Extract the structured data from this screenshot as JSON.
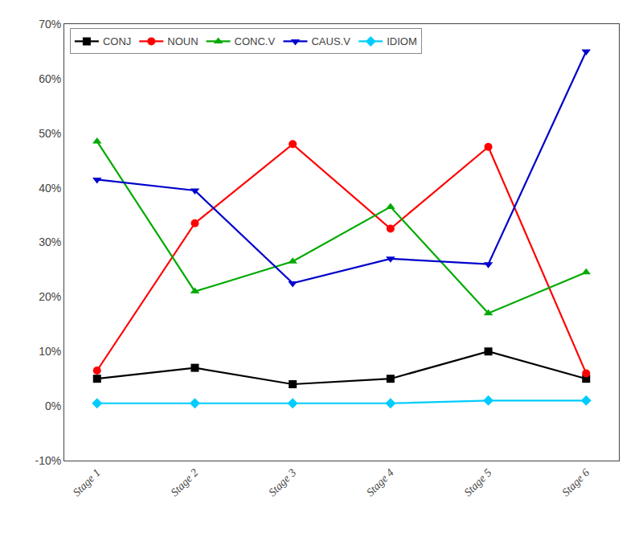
{
  "chart_data": {
    "type": "line",
    "categories": [
      "Stage 1",
      "Stage 2",
      "Stage 3",
      "Stage 4",
      "Stage 5",
      "Stage 6"
    ],
    "series": [
      {
        "name": "CONJ",
        "color": "#000000",
        "marker": "square",
        "values": [
          0.05,
          0.07,
          0.04,
          0.05,
          0.1,
          0.05
        ]
      },
      {
        "name": "NOUN",
        "color": "#ff0000",
        "marker": "circle",
        "values": [
          0.065,
          0.335,
          0.48,
          0.325,
          0.475,
          0.06
        ]
      },
      {
        "name": "CONC.V",
        "color": "#00aa00",
        "marker": "triangle-up",
        "values": [
          0.485,
          0.21,
          0.265,
          0.365,
          0.17,
          0.245
        ]
      },
      {
        "name": "CAUS.V",
        "color": "#0000cc",
        "marker": "triangle-down",
        "values": [
          0.415,
          0.395,
          0.225,
          0.27,
          0.26,
          0.65
        ]
      },
      {
        "name": "IDIOM",
        "color": "#00ccff",
        "marker": "diamond",
        "values": [
          0.005,
          0.005,
          0.005,
          0.005,
          0.01,
          0.01
        ]
      }
    ],
    "ylim": [
      -0.1,
      0.7
    ],
    "yticks": [
      {
        "value": -0.1,
        "label": "-10%"
      },
      {
        "value": 0.0,
        "label": "0%"
      },
      {
        "value": 0.1,
        "label": "10%"
      },
      {
        "value": 0.2,
        "label": "20%"
      },
      {
        "value": 0.3,
        "label": "30%"
      },
      {
        "value": 0.4,
        "label": "40%"
      },
      {
        "value": 0.5,
        "label": "50%"
      },
      {
        "value": 0.6,
        "label": "60%"
      },
      {
        "value": 0.7,
        "label": "70%"
      }
    ],
    "grid": false,
    "legend": "upper left"
  }
}
